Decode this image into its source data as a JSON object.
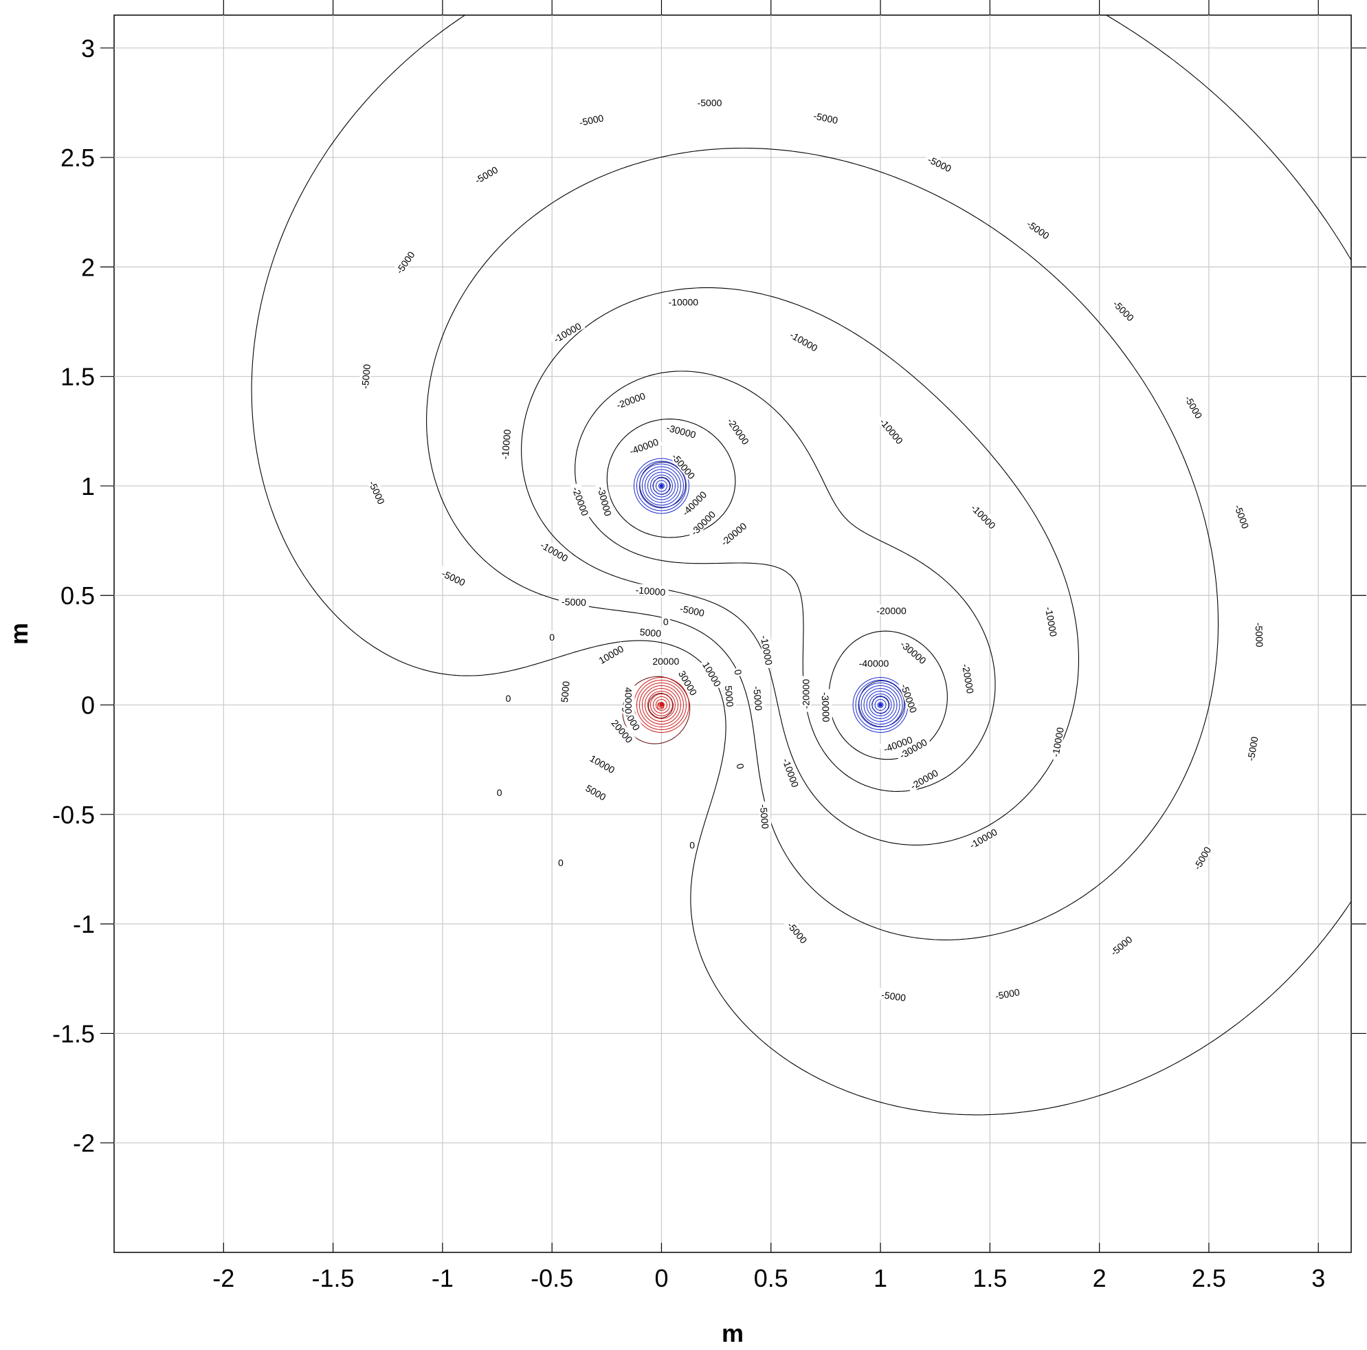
{
  "chart_data": {
    "type": "contour",
    "xlabel": "m",
    "ylabel": "m",
    "xlim": [
      -2.5,
      3.15
    ],
    "ylim": [
      -2.5,
      3.15
    ],
    "grid": true,
    "x_ticks": [
      -2,
      -1.5,
      -1,
      -0.5,
      0,
      0.5,
      1,
      1.5,
      2,
      2.5,
      3
    ],
    "y_ticks": [
      3,
      2.5,
      2,
      1.5,
      1,
      0.5,
      0,
      -0.5,
      -1,
      -1.5,
      -2
    ],
    "x_tick_labels": [
      "-2",
      "-1.5",
      "-1",
      "-0.5",
      "0",
      "0.5",
      "1",
      "1.5",
      "2",
      "2.5",
      "3"
    ],
    "y_tick_labels": [
      "3",
      "2.5",
      "2",
      "1.5",
      "1",
      "0.5",
      "0",
      "-0.5",
      "-1",
      "-1.5",
      "-2"
    ],
    "sources": [
      {
        "x": 0,
        "y": 0,
        "sign": "positive",
        "color": "#d11a1a"
      },
      {
        "x": 0,
        "y": 1,
        "sign": "negative",
        "color": "#1a2ad1"
      },
      {
        "x": 1,
        "y": 0,
        "sign": "negative",
        "color": "#1a2ad1"
      }
    ],
    "contour_levels": [
      -50000,
      -40000,
      -30000,
      -20000,
      -10000,
      -5000,
      0,
      5000,
      10000,
      20000,
      30000,
      40000
    ],
    "contour_labels": [
      {
        "text": "-5000",
        "x": 0.22,
        "y": 2.75,
        "angle": 0
      },
      {
        "text": "-5000",
        "x": 0.75,
        "y": 2.68,
        "angle": 12
      },
      {
        "text": "-5000",
        "x": -0.32,
        "y": 2.67,
        "angle": -12
      },
      {
        "text": "-5000",
        "x": 1.27,
        "y": 2.47,
        "angle": 25
      },
      {
        "text": "-5000",
        "x": -0.8,
        "y": 2.42,
        "angle": -30
      },
      {
        "text": "-5000",
        "x": 1.72,
        "y": 2.17,
        "angle": 35
      },
      {
        "text": "-5000",
        "x": -1.17,
        "y": 2.02,
        "angle": -55
      },
      {
        "text": "-5000",
        "x": 2.11,
        "y": 1.8,
        "angle": 45
      },
      {
        "text": "-5000",
        "x": -1.35,
        "y": 1.5,
        "angle": -85
      },
      {
        "text": "-5000",
        "x": 2.43,
        "y": 1.36,
        "angle": 60
      },
      {
        "text": "-5000",
        "x": -1.3,
        "y": 0.97,
        "angle": 65
      },
      {
        "text": "-5000",
        "x": 2.65,
        "y": 0.86,
        "angle": 70
      },
      {
        "text": "-5000",
        "x": -0.95,
        "y": 0.58,
        "angle": 25
      },
      {
        "text": "-5000",
        "x": 2.73,
        "y": 0.32,
        "angle": 88
      },
      {
        "text": "-5000",
        "x": -0.4,
        "y": 0.47,
        "angle": 2
      },
      {
        "text": "-5000",
        "x": 2.7,
        "y": -0.2,
        "angle": -80
      },
      {
        "text": "-5000",
        "x": 0.14,
        "y": 0.43,
        "angle": 12
      },
      {
        "text": "-5000",
        "x": 2.47,
        "y": -0.7,
        "angle": -60
      },
      {
        "text": "-5000",
        "x": 0.44,
        "y": 0.03,
        "angle": 85
      },
      {
        "text": "-5000",
        "x": 2.1,
        "y": -1.1,
        "angle": -40
      },
      {
        "text": "-5000",
        "x": 0.47,
        "y": -0.51,
        "angle": 85
      },
      {
        "text": "-5000",
        "x": 1.58,
        "y": -1.32,
        "angle": -10
      },
      {
        "text": "-5000",
        "x": 0.62,
        "y": -1.04,
        "angle": 50
      },
      {
        "text": "-5000",
        "x": 1.06,
        "y": -1.33,
        "angle": 8
      },
      {
        "text": "-10000",
        "x": 0.1,
        "y": 1.84,
        "angle": 0
      },
      {
        "text": "-10000",
        "x": -0.43,
        "y": 1.7,
        "angle": -30
      },
      {
        "text": "-10000",
        "x": 0.65,
        "y": 1.66,
        "angle": 30
      },
      {
        "text": "-10000",
        "x": -0.71,
        "y": 1.19,
        "angle": -85
      },
      {
        "text": "-10000",
        "x": 1.05,
        "y": 1.25,
        "angle": 50
      },
      {
        "text": "-10000",
        "x": -0.49,
        "y": 0.7,
        "angle": 30
      },
      {
        "text": "-10000",
        "x": 1.47,
        "y": 0.86,
        "angle": 45
      },
      {
        "text": "-10000",
        "x": -0.05,
        "y": 0.52,
        "angle": 5
      },
      {
        "text": "-10000",
        "x": 1.78,
        "y": 0.38,
        "angle": 80
      },
      {
        "text": "-10000",
        "x": 0.48,
        "y": 0.25,
        "angle": 80
      },
      {
        "text": "-10000",
        "x": 1.81,
        "y": -0.17,
        "angle": -80
      },
      {
        "text": "-10000",
        "x": 0.59,
        "y": -0.31,
        "angle": 70
      },
      {
        "text": "-10000",
        "x": 1.47,
        "y": -0.61,
        "angle": -30
      },
      {
        "text": "-20000",
        "x": -0.14,
        "y": 1.39,
        "angle": -20
      },
      {
        "text": "-20000",
        "x": 0.35,
        "y": 1.25,
        "angle": 55
      },
      {
        "text": "-20000",
        "x": -0.37,
        "y": 0.93,
        "angle": 70
      },
      {
        "text": "-20000",
        "x": 0.33,
        "y": 0.78,
        "angle": -40
      },
      {
        "text": "-30000",
        "x": 0.09,
        "y": 1.25,
        "angle": 15
      },
      {
        "text": "-30000",
        "x": -0.26,
        "y": 0.93,
        "angle": 75
      },
      {
        "text": "-30000",
        "x": 0.19,
        "y": 0.83,
        "angle": -45
      },
      {
        "text": "-40000",
        "x": -0.08,
        "y": 1.18,
        "angle": -20
      },
      {
        "text": "-40000",
        "x": 0.15,
        "y": 0.92,
        "angle": -45
      },
      {
        "text": "-50000",
        "x": 0.1,
        "y": 1.09,
        "angle": 50
      },
      {
        "text": "-20000",
        "x": 1.05,
        "y": 0.43,
        "angle": 0
      },
      {
        "text": "-20000",
        "x": 1.4,
        "y": 0.12,
        "angle": 80
      },
      {
        "text": "-20000",
        "x": 0.66,
        "y": 0.05,
        "angle": -90
      },
      {
        "text": "-20000",
        "x": 1.2,
        "y": -0.34,
        "angle": -30
      },
      {
        "text": "-30000",
        "x": 1.15,
        "y": 0.24,
        "angle": 40
      },
      {
        "text": "-30000",
        "x": 0.75,
        "y": -0.01,
        "angle": 88
      },
      {
        "text": "-30000",
        "x": 1.15,
        "y": -0.2,
        "angle": -30
      },
      {
        "text": "-40000",
        "x": 0.97,
        "y": 0.19,
        "angle": 0
      },
      {
        "text": "-40000",
        "x": 1.08,
        "y": -0.18,
        "angle": -20
      },
      {
        "text": "-50000",
        "x": 1.13,
        "y": 0.03,
        "angle": 70
      },
      {
        "text": "0",
        "x": 0.02,
        "y": 0.38,
        "angle": 0
      },
      {
        "text": "0",
        "x": -0.5,
        "y": 0.31,
        "angle": 0
      },
      {
        "text": "0",
        "x": 0.35,
        "y": 0.15,
        "angle": 80
      },
      {
        "text": "0",
        "x": -0.7,
        "y": 0.03,
        "angle": 0
      },
      {
        "text": "0",
        "x": 0.36,
        "y": -0.28,
        "angle": 80
      },
      {
        "text": "0",
        "x": -0.74,
        "y": -0.4,
        "angle": 0
      },
      {
        "text": "0",
        "x": 0.14,
        "y": -0.64,
        "angle": 0
      },
      {
        "text": "0",
        "x": -0.46,
        "y": -0.72,
        "angle": 0
      },
      {
        "text": "5000",
        "x": -0.05,
        "y": 0.33,
        "angle": 5
      },
      {
        "text": "5000",
        "x": -0.44,
        "y": 0.06,
        "angle": -85
      },
      {
        "text": "5000",
        "x": 0.31,
        "y": 0.04,
        "angle": 85
      },
      {
        "text": "5000",
        "x": -0.3,
        "y": -0.4,
        "angle": 30
      },
      {
        "text": "10000",
        "x": -0.23,
        "y": 0.23,
        "angle": -30
      },
      {
        "text": "10000",
        "x": 0.23,
        "y": 0.14,
        "angle": 60
      },
      {
        "text": "10000",
        "x": -0.27,
        "y": -0.27,
        "angle": 30
      },
      {
        "text": "20000",
        "x": 0.02,
        "y": 0.2,
        "angle": 0
      },
      {
        "text": "20000",
        "x": -0.18,
        "y": -0.12,
        "angle": 50
      },
      {
        "text": "30000",
        "x": 0.12,
        "y": 0.1,
        "angle": 60
      },
      {
        "text": "30000",
        "x": -0.14,
        "y": -0.06,
        "angle": 60
      },
      {
        "text": "40000",
        "x": -0.15,
        "y": 0.02,
        "angle": 90
      }
    ]
  }
}
